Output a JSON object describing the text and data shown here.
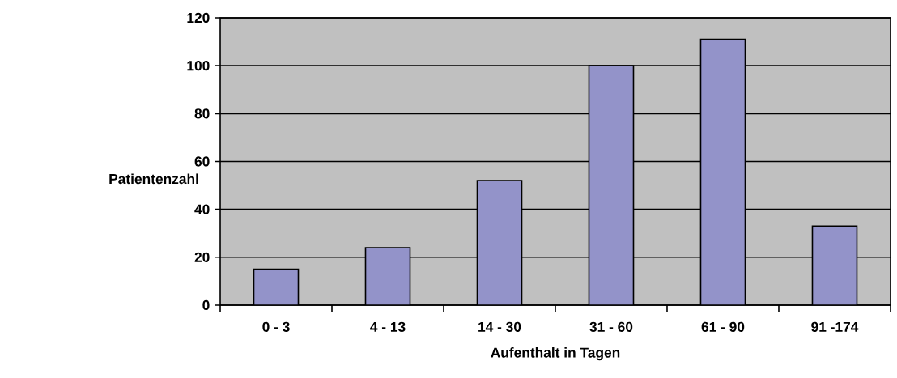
{
  "chart_data": {
    "type": "bar",
    "xlabel": "Aufenthalt in Tagen",
    "ylabel": "Patientenzahl",
    "categories": [
      "0 - 3",
      "4 - 13",
      "14 - 30",
      "31 - 60",
      "61 - 90",
      "91 -174"
    ],
    "values": [
      15,
      24,
      52,
      100,
      111,
      33
    ],
    "color": "#9393c9",
    "ylim": [
      0,
      120
    ],
    "yticks": [
      0,
      20,
      40,
      60,
      80,
      100,
      120
    ],
    "grid": "y"
  }
}
